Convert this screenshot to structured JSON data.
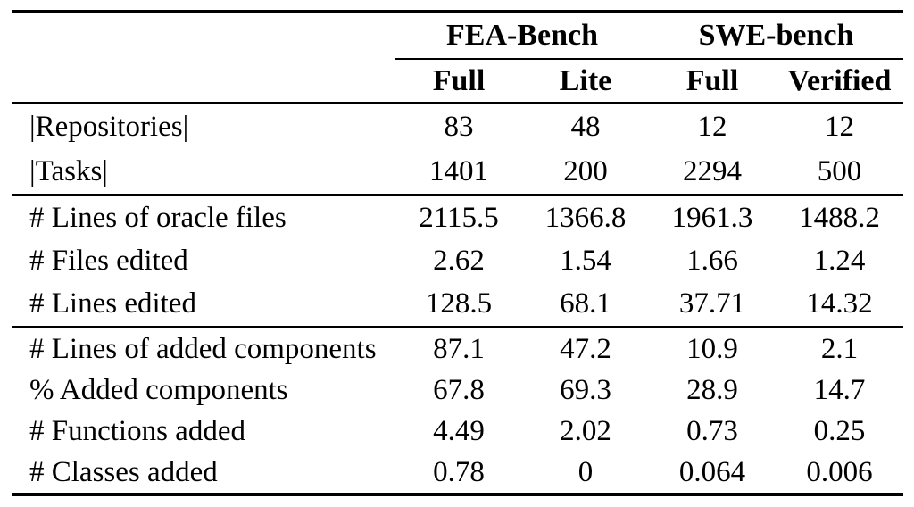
{
  "table": {
    "group_headers": [
      {
        "label": "FEA-Bench"
      },
      {
        "label": "SWE-bench"
      }
    ],
    "column_headers": [
      "Full",
      "Lite",
      "Full",
      "Verified"
    ],
    "sections": [
      {
        "rows": [
          {
            "label": "|Repositories|",
            "values": [
              "83",
              "48",
              "12",
              "12"
            ]
          },
          {
            "label": "|Tasks|",
            "values": [
              "1401",
              "200",
              "2294",
              "500"
            ]
          }
        ]
      },
      {
        "rows": [
          {
            "label": "# Lines of oracle files",
            "values": [
              "2115.5",
              "1366.8",
              "1961.3",
              "1488.2"
            ]
          },
          {
            "label": "# Files edited",
            "values": [
              "2.62",
              "1.54",
              "1.66",
              "1.24"
            ]
          },
          {
            "label": "# Lines edited",
            "values": [
              "128.5",
              "68.1",
              "37.71",
              "14.32"
            ]
          }
        ]
      },
      {
        "rows": [
          {
            "label": "# Lines of added components",
            "values": [
              "87.1",
              "47.2",
              "10.9",
              "2.1"
            ]
          },
          {
            "label": "% Added components",
            "values": [
              "67.8",
              "69.3",
              "28.9",
              "14.7"
            ]
          },
          {
            "label": "# Functions added",
            "values": [
              "4.49",
              "2.02",
              "0.73",
              "0.25"
            ]
          },
          {
            "label": "# Classes added",
            "values": [
              "0.78",
              "0",
              "0.064",
              "0.006"
            ]
          }
        ]
      }
    ],
    "colors": {
      "text": "#000000",
      "rule": "#000000",
      "background": "#ffffff"
    }
  }
}
